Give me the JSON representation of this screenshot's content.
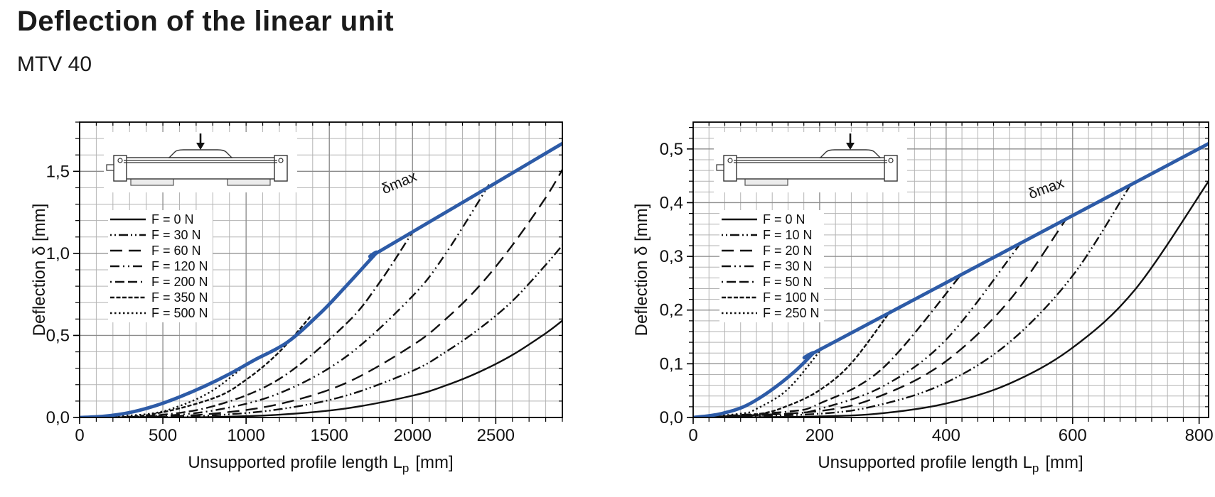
{
  "header": {
    "title": "Deflection of the linear unit",
    "model": "MTV 40"
  },
  "colors": {
    "envelope_blue": "#2d5ba7",
    "curve_black": "#111111",
    "grid_minor": "#b3b3b3",
    "grid_major": "#8c8c8c",
    "frame": "#000000"
  },
  "chart_data": [
    {
      "id": "left",
      "type": "line",
      "load_case": "load at carriage center, unit supported at both ends",
      "x_axis": {
        "label_main": "Unsupported profile length L",
        "label_sub": "p",
        "label_unit": "[mm]",
        "min": 0,
        "max": 2900,
        "major_step": 500,
        "minor_step": 100,
        "ticks": [
          {
            "v": 0,
            "label": "0"
          },
          {
            "v": 500,
            "label": "500"
          },
          {
            "v": 1000,
            "label": "1000"
          },
          {
            "v": 1500,
            "label": "1500"
          },
          {
            "v": 2000,
            "label": "2000"
          },
          {
            "v": 2500,
            "label": "2500"
          }
        ]
      },
      "y_axis": {
        "label": "Deflection δ [mm]",
        "min": 0,
        "max": 1.8,
        "major_step": 0.5,
        "minor_step": 0.1,
        "ticks": [
          {
            "v": 0,
            "label": "0,0"
          },
          {
            "v": 0.5,
            "label": "0,5"
          },
          {
            "v": 1.0,
            "label": "1,0"
          },
          {
            "v": 1.5,
            "label": "1,5"
          }
        ]
      },
      "envelope": {
        "label": "δmax",
        "points": [
          [
            0,
            0
          ],
          [
            150,
            0.008
          ],
          [
            300,
            0.03
          ],
          [
            450,
            0.07
          ],
          [
            600,
            0.125
          ],
          [
            750,
            0.19
          ],
          [
            900,
            0.265
          ],
          [
            1050,
            0.35
          ],
          [
            1250,
            0.46
          ],
          [
            1450,
            0.64
          ],
          [
            1600,
            0.8
          ],
          [
            1780,
            1.0
          ],
          [
            1780,
            1.0
          ],
          [
            2350,
            1.34
          ],
          [
            2900,
            1.67
          ]
        ]
      },
      "series": [
        {
          "label": "F = 0 N",
          "dash": "",
          "points": [
            [
              0,
              0
            ],
            [
              400,
              0.0
            ],
            [
              800,
              0.003
            ],
            [
              1200,
              0.017
            ],
            [
              1600,
              0.055
            ],
            [
              2000,
              0.133
            ],
            [
              2200,
              0.195
            ],
            [
              2400,
              0.277
            ],
            [
              2600,
              0.381
            ],
            [
              2800,
              0.513
            ],
            [
              2900,
              0.59
            ]
          ]
        },
        {
          "label": "F = 30 N",
          "dash": "2,4,2,4,13,4",
          "points": [
            [
              0,
              0
            ],
            [
              400,
              0.001
            ],
            [
              800,
              0.013
            ],
            [
              1200,
              0.05
            ],
            [
              1600,
              0.133
            ],
            [
              2000,
              0.284
            ],
            [
              2200,
              0.4
            ],
            [
              2400,
              0.54
            ],
            [
              2600,
              0.71
            ],
            [
              2800,
              0.93
            ],
            [
              2900,
              1.05
            ]
          ]
        },
        {
          "label": "F = 60 N",
          "dash": "17,9",
          "points": [
            [
              0,
              0
            ],
            [
              400,
              0.003
            ],
            [
              800,
              0.023
            ],
            [
              1200,
              0.082
            ],
            [
              1600,
              0.21
            ],
            [
              2000,
              0.44
            ],
            [
              2200,
              0.6
            ],
            [
              2400,
              0.8
            ],
            [
              2600,
              1.05
            ],
            [
              2800,
              1.34
            ],
            [
              2900,
              1.51
            ]
          ]
        },
        {
          "label": "F = 120 N",
          "dash": "13,5,2,5,2,5",
          "points": [
            [
              0,
              0
            ],
            [
              400,
              0.005
            ],
            [
              800,
              0.042
            ],
            [
              1200,
              0.148
            ],
            [
              1600,
              0.37
            ],
            [
              2000,
              0.74
            ],
            [
              2200,
              1.0
            ],
            [
              2460,
              1.42
            ]
          ]
        },
        {
          "label": "F = 200 N",
          "dash": "2,5,13,5,13,5",
          "points": [
            [
              0,
              0
            ],
            [
              400,
              0.008
            ],
            [
              800,
              0.068
            ],
            [
              1200,
              0.235
            ],
            [
              1600,
              0.57
            ],
            [
              1800,
              0.82
            ],
            [
              2000,
              1.13
            ]
          ]
        },
        {
          "label": "F = 350 N",
          "dash": "6,2.5",
          "points": [
            [
              0,
              0
            ],
            [
              400,
              0.014
            ],
            [
              800,
              0.116
            ],
            [
              1000,
              0.23
            ],
            [
              1200,
              0.4
            ],
            [
              1390,
              0.62
            ]
          ]
        },
        {
          "label": "F = 500 N",
          "dash": "2.5,3.5",
          "points": [
            [
              0,
              0
            ],
            [
              400,
              0.02
            ],
            [
              600,
              0.07
            ],
            [
              800,
              0.165
            ],
            [
              1010,
              0.33
            ]
          ]
        }
      ]
    },
    {
      "id": "right",
      "type": "line",
      "load_case": "load at carriage near free end, unit supported at one end",
      "x_axis": {
        "label_main": "Unsupported profile length L",
        "label_sub": "p",
        "label_unit": "[mm]",
        "min": 0,
        "max": 815,
        "major_step": 200,
        "minor_step": 25,
        "ticks": [
          {
            "v": 0,
            "label": "0"
          },
          {
            "v": 200,
            "label": "200"
          },
          {
            "v": 400,
            "label": "400"
          },
          {
            "v": 600,
            "label": "600"
          },
          {
            "v": 800,
            "label": "800"
          }
        ]
      },
      "y_axis": {
        "label": "Deflection δ [mm]",
        "min": 0,
        "max": 0.55,
        "major_step": 0.1,
        "minor_step": 0.02,
        "ticks": [
          {
            "v": 0,
            "label": "0,0"
          },
          {
            "v": 0.1,
            "label": "0,1"
          },
          {
            "v": 0.2,
            "label": "0,2"
          },
          {
            "v": 0.3,
            "label": "0,3"
          },
          {
            "v": 0.4,
            "label": "0,4"
          },
          {
            "v": 0.5,
            "label": "0,5"
          }
        ]
      },
      "envelope": {
        "label": "δmax",
        "points": [
          [
            0,
            0
          ],
          [
            40,
            0.006
          ],
          [
            80,
            0.02
          ],
          [
            120,
            0.048
          ],
          [
            160,
            0.085
          ],
          [
            190,
            0.12
          ],
          [
            190,
            0.12
          ],
          [
            400,
            0.251
          ],
          [
            600,
            0.376
          ],
          [
            815,
            0.51
          ]
        ]
      },
      "series": [
        {
          "label": "F = 0 N",
          "dash": "",
          "points": [
            [
              0,
              0
            ],
            [
              200,
              0.002
            ],
            [
              300,
              0.008
            ],
            [
              400,
              0.026
            ],
            [
              500,
              0.063
            ],
            [
              600,
              0.13
            ],
            [
              700,
              0.24
            ],
            [
              815,
              0.44
            ]
          ]
        },
        {
          "label": "F = 10 N",
          "dash": "2,4,2,4,13,4",
          "points": [
            [
              0,
              0
            ],
            [
              200,
              0.007
            ],
            [
              300,
              0.025
            ],
            [
              400,
              0.065
            ],
            [
              500,
              0.14
            ],
            [
              600,
              0.264
            ],
            [
              690,
              0.43
            ]
          ]
        },
        {
          "label": "F = 20 N",
          "dash": "17,9",
          "points": [
            [
              0,
              0
            ],
            [
              200,
              0.012
            ],
            [
              300,
              0.042
            ],
            [
              400,
              0.105
            ],
            [
              500,
              0.218
            ],
            [
              590,
              0.37
            ]
          ]
        },
        {
          "label": "F = 30 N",
          "dash": "13,5,2,5,2,5",
          "points": [
            [
              0,
              0
            ],
            [
              150,
              0.007
            ],
            [
              200,
              0.016
            ],
            [
              300,
              0.058
            ],
            [
              400,
              0.145
            ],
            [
              515,
              0.32
            ]
          ]
        },
        {
          "label": "F = 50 N",
          "dash": "2,5,13,5,13,5",
          "points": [
            [
              0,
              0
            ],
            [
              150,
              0.011
            ],
            [
              200,
              0.026
            ],
            [
              300,
              0.092
            ],
            [
              423,
              0.265
            ]
          ]
        },
        {
          "label": "F = 100 N",
          "dash": "6,2.5",
          "points": [
            [
              0,
              0
            ],
            [
              100,
              0.006
            ],
            [
              150,
              0.022
            ],
            [
              200,
              0.051
            ],
            [
              250,
              0.101
            ],
            [
              310,
              0.195
            ]
          ]
        },
        {
          "label": "F = 250 N",
          "dash": "2.5,3.5",
          "points": [
            [
              0,
              0
            ],
            [
              75,
              0.007
            ],
            [
              100,
              0.016
            ],
            [
              150,
              0.053
            ],
            [
              203,
              0.128
            ]
          ]
        }
      ]
    }
  ]
}
